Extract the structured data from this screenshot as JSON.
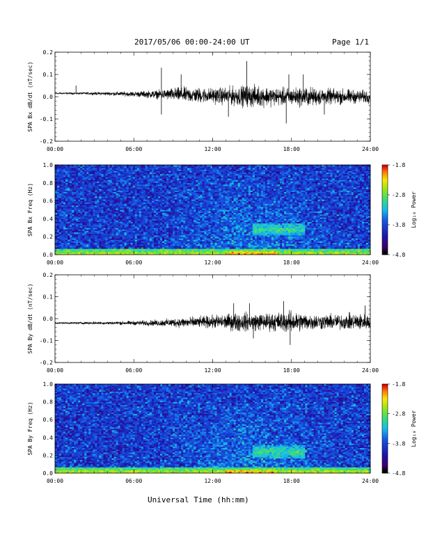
{
  "header": {
    "title": "2017/05/06  00:00-24:00 UT",
    "page": "Page 1/1"
  },
  "xaxis_label": "Universal Time (hh:mm)",
  "colorbar": {
    "label": "Log₁₀ Power",
    "ticks": [
      "-1.8",
      "-2.8",
      "-3.8",
      "-4.8"
    ],
    "range": [
      -4.8,
      -1.8
    ]
  },
  "chart_data": [
    {
      "type": "line",
      "ylabel": "SPA Bx dB/dt (nT/sec)",
      "x_ticks": [
        "00:00",
        "06:00",
        "12:00",
        "18:00",
        "24:00"
      ],
      "y_ticks": [
        "0.2",
        "0.1",
        "0.0",
        "-0.1",
        "-0.2"
      ],
      "xlim": [
        0,
        24
      ],
      "ylim": [
        -0.2,
        0.2
      ],
      "x": [
        0,
        2,
        4,
        6,
        8,
        9,
        10,
        11,
        12,
        13,
        14,
        15,
        16,
        17,
        18,
        19,
        20,
        21,
        22,
        23,
        24
      ],
      "baseline": [
        0.015,
        0.015,
        0.014,
        0.012,
        0.01,
        0.01,
        0.008,
        0.006,
        0.005,
        0.003,
        0.003,
        0.002,
        0.002,
        0.0,
        0.0,
        0.0,
        0.0,
        0.0,
        0.0,
        0.0,
        0.0
      ],
      "amplitude": [
        0.004,
        0.005,
        0.008,
        0.012,
        0.02,
        0.03,
        0.035,
        0.035,
        0.035,
        0.04,
        0.045,
        0.05,
        0.045,
        0.04,
        0.04,
        0.045,
        0.04,
        0.035,
        0.035,
        0.03,
        0.03
      ],
      "spikes": [
        {
          "x": 1.6,
          "y": 0.05
        },
        {
          "x": 8.1,
          "y": 0.13
        },
        {
          "x": 8.1,
          "y": -0.08
        },
        {
          "x": 9.6,
          "y": 0.1
        },
        {
          "x": 13.2,
          "y": -0.09
        },
        {
          "x": 14.6,
          "y": 0.16
        },
        {
          "x": 17.6,
          "y": -0.12
        },
        {
          "x": 17.8,
          "y": 0.1
        },
        {
          "x": 18.9,
          "y": 0.1
        },
        {
          "x": 20.5,
          "y": -0.08
        }
      ]
    },
    {
      "type": "heatmap",
      "ylabel": "SPA Bx Freq (Hz)",
      "x_ticks": [
        "00:00",
        "06:00",
        "12:00",
        "18:00",
        "24:00"
      ],
      "y_ticks": [
        "1.0",
        "0.8",
        "0.6",
        "0.4",
        "0.2",
        "0.0"
      ],
      "xlim": [
        0,
        24
      ],
      "ylim": [
        0,
        1.0
      ],
      "features": [
        {
          "kind": "low_band",
          "x_range": [
            0,
            24
          ],
          "freq_max": 0.06,
          "peak_x": [
            13,
            17
          ],
          "level": -1.8
        },
        {
          "kind": "enhancement",
          "x_range": [
            15,
            19
          ],
          "freq_center": 0.28,
          "level": -3.0
        }
      ]
    },
    {
      "type": "line",
      "ylabel": "SPA By dB/dt (nT/sec)",
      "x_ticks": [
        "00:00",
        "06:00",
        "12:00",
        "18:00",
        "24:00"
      ],
      "y_ticks": [
        "0.2",
        "0.1",
        "0.0",
        "-0.1",
        "-0.2"
      ],
      "xlim": [
        0,
        24
      ],
      "ylim": [
        -0.2,
        0.2
      ],
      "x": [
        0,
        2,
        4,
        6,
        8,
        9,
        10,
        11,
        12,
        13,
        14,
        15,
        16,
        17,
        18,
        19,
        20,
        21,
        22,
        23,
        24
      ],
      "baseline": [
        -0.02,
        -0.02,
        -0.02,
        -0.02,
        -0.02,
        -0.018,
        -0.018,
        -0.016,
        -0.015,
        -0.015,
        -0.015,
        -0.015,
        -0.015,
        -0.015,
        -0.015,
        -0.015,
        -0.015,
        -0.015,
        -0.015,
        -0.015,
        -0.015
      ],
      "amplitude": [
        0.004,
        0.005,
        0.007,
        0.01,
        0.015,
        0.02,
        0.025,
        0.025,
        0.03,
        0.035,
        0.045,
        0.04,
        0.04,
        0.045,
        0.05,
        0.04,
        0.035,
        0.035,
        0.035,
        0.04,
        0.035
      ],
      "spikes": [
        {
          "x": 13.6,
          "y": 0.07
        },
        {
          "x": 14.8,
          "y": 0.07
        },
        {
          "x": 17.4,
          "y": 0.08
        },
        {
          "x": 17.9,
          "y": -0.12
        },
        {
          "x": 15.1,
          "y": -0.09
        },
        {
          "x": 23.6,
          "y": 0.06
        }
      ]
    },
    {
      "type": "heatmap",
      "ylabel": "SPA By Freq (Hz)",
      "x_ticks": [
        "00:00",
        "06:00",
        "12:00",
        "18:00",
        "24:00"
      ],
      "y_ticks": [
        "1.0",
        "0.8",
        "0.6",
        "0.4",
        "0.2",
        "0.0"
      ],
      "xlim": [
        0,
        24
      ],
      "ylim": [
        0,
        1.0
      ],
      "features": [
        {
          "kind": "low_band",
          "x_range": [
            0,
            24
          ],
          "freq_max": 0.06,
          "peak_x": [
            13,
            17
          ],
          "level": -1.8
        },
        {
          "kind": "enhancement",
          "x_range": [
            15,
            19
          ],
          "freq_center": 0.24,
          "level": -3.0
        }
      ]
    }
  ]
}
